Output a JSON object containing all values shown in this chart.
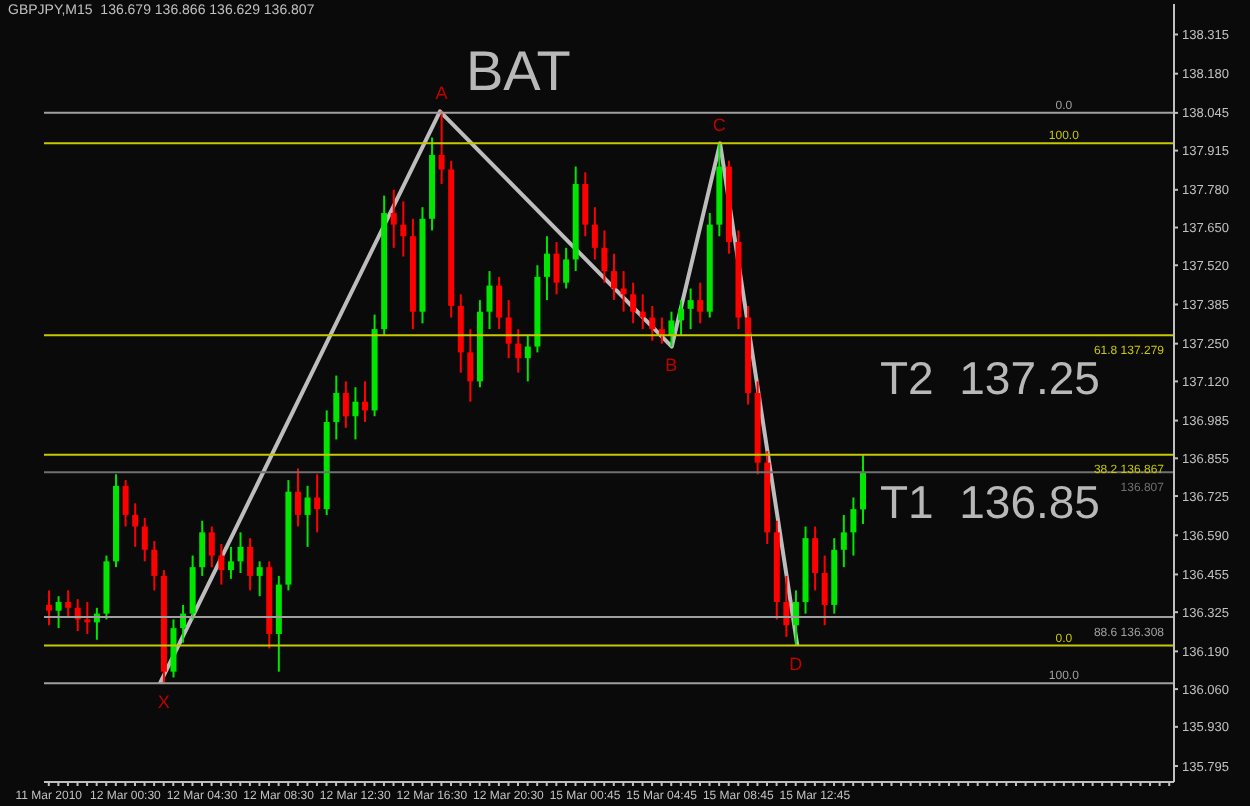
{
  "chart_data": {
    "type": "candlestick",
    "title": "GBPJPY,M15  136.679 136.866 136.629 136.807",
    "categories": [
      "11 Mar 2010",
      null,
      null,
      null,
      null,
      null,
      null,
      null,
      "12 Mar 00:30",
      null,
      null,
      null,
      null,
      null,
      null,
      null,
      "12 Mar 04:30",
      null,
      null,
      null,
      null,
      null,
      null,
      null,
      "12 Mar 08:30",
      null,
      null,
      null,
      null,
      null,
      null,
      null,
      "12 Mar 12:30",
      null,
      null,
      null,
      null,
      null,
      null,
      null,
      "12 Mar 16:30",
      null,
      null,
      null,
      null,
      null,
      null,
      null,
      "12 Mar 20:30",
      null,
      null,
      null,
      null,
      null,
      null,
      null,
      "15 Mar 00:45",
      null,
      null,
      null,
      null,
      null,
      null,
      null,
      "15 Mar 04:45",
      null,
      null,
      null,
      null,
      null,
      null,
      null,
      "15 Mar 08:45",
      null,
      null,
      null,
      null,
      null,
      null,
      null,
      "15 Mar 12:45",
      null,
      null,
      null,
      null,
      null,
      null,
      null,
      null,
      null,
      null,
      null,
      null,
      null,
      null,
      null,
      null,
      null,
      null,
      null,
      null,
      null,
      null,
      null,
      null,
      null,
      null,
      null,
      null,
      null,
      null,
      null,
      null,
      null,
      null,
      null,
      null,
      null
    ],
    "series": [
      {
        "type": "line",
        "color": "#bdbdbd",
        "values": [
          null,
          null,
          null,
          null,
          null,
          null,
          null,
          null,
          null,
          null,
          null,
          null,
          136.08,
          null,
          null,
          null,
          null,
          null,
          null,
          null,
          null,
          null,
          null,
          null,
          null,
          null,
          null,
          null,
          null,
          null,
          null,
          null,
          null,
          null,
          null,
          null,
          null,
          null,
          null,
          null,
          null,
          138.05,
          null,
          null,
          null,
          null,
          null,
          null,
          null,
          null,
          null,
          null,
          null,
          null,
          null,
          null,
          null,
          null,
          null,
          null,
          null,
          null,
          null,
          null,
          null,
          137.24,
          null,
          null,
          null,
          null,
          137.94,
          null,
          null,
          null,
          null,
          null,
          null,
          null,
          136.21,
          null,
          null,
          null,
          null,
          null,
          null,
          null,
          null,
          null,
          null,
          null,
          null,
          null,
          null,
          null,
          null,
          null,
          null,
          null,
          null,
          null,
          null,
          null,
          null,
          null,
          null,
          null,
          null,
          null,
          null,
          null,
          null,
          null,
          null,
          null,
          null,
          null,
          null,
          null
        ]
      },
      {
        "type": "candlestick",
        "colors": [
          "#ff0000",
          "#00e600",
          "#ff0000",
          "#ff0000",
          "#ff0000",
          "#00e600",
          "#00e600",
          "#00e600",
          "#ff0000",
          "#ff0000",
          "#ff0000",
          "#ff0000",
          "#ff0000",
          "#00e600",
          "#00e600",
          "#00e600",
          "#00e600",
          "#ff0000",
          "#ff0000",
          "#00e600",
          "#00e600",
          "#ff0000",
          "#00e600",
          "#ff0000",
          "#00e600",
          "#00e600",
          "#ff0000",
          "#00e600",
          "#ff0000",
          "#00e600",
          "#00e600",
          "#ff0000",
          "#00e600",
          "#ff0000",
          "#00e600",
          "#00e600",
          "#ff0000",
          "#ff0000",
          "#ff0000",
          "#00e600",
          "#00e600",
          "#ff0000",
          "#ff0000",
          "#ff0000",
          "#ff0000",
          "#00e600",
          "#00e600",
          "#ff0000",
          "#ff0000",
          "#ff0000",
          "#00e600",
          "#00e600",
          "#00e600",
          "#ff0000",
          "#00e600",
          "#00e600",
          "#ff0000",
          "#ff0000",
          "#ff0000",
          "#ff0000",
          "#ff0000",
          "#ff0000",
          "#ff0000",
          "#ff0000",
          "#ff0000",
          "#00e600",
          "#00e600",
          "#00e600",
          "#ff0000",
          "#00e600",
          "#00e600",
          "#ff0000",
          "#ff0000",
          "#ff0000",
          "#ff0000",
          "#ff0000",
          "#ff0000",
          "#ff0000",
          "#00e600",
          "#00e600",
          "#ff0000",
          "#ff0000",
          "#00e600",
          "#00e600",
          "#00e600",
          "#00e600",
          null,
          null,
          null,
          null,
          null,
          null,
          null,
          null,
          null,
          null,
          null,
          null,
          null,
          null,
          null,
          null,
          null,
          null,
          null,
          null,
          null,
          null,
          null,
          null,
          null,
          null,
          null,
          null,
          null,
          null,
          null,
          null
        ],
        "ohlc": [
          [
            136.35,
            136.4,
            136.28,
            136.33
          ],
          [
            136.33,
            136.38,
            136.27,
            136.36
          ],
          [
            136.36,
            136.4,
            136.31,
            136.34
          ],
          [
            136.34,
            136.37,
            136.26,
            136.3
          ],
          [
            136.3,
            136.36,
            136.25,
            136.29
          ],
          [
            136.29,
            136.34,
            136.23,
            136.32
          ],
          [
            136.32,
            136.52,
            136.3,
            136.5
          ],
          [
            136.5,
            136.8,
            136.48,
            136.76
          ],
          [
            136.76,
            136.78,
            136.62,
            136.66
          ],
          [
            136.66,
            136.7,
            136.55,
            136.62
          ],
          [
            136.62,
            136.65,
            136.5,
            136.54
          ],
          [
            136.54,
            136.57,
            136.4,
            136.45
          ],
          [
            136.45,
            136.47,
            136.08,
            136.12
          ],
          [
            136.12,
            136.3,
            136.1,
            136.27
          ],
          [
            136.27,
            136.35,
            136.22,
            136.32
          ],
          [
            136.32,
            136.52,
            136.3,
            136.48
          ],
          [
            136.48,
            136.64,
            136.45,
            136.6
          ],
          [
            136.6,
            136.62,
            136.48,
            136.52
          ],
          [
            136.52,
            136.56,
            136.42,
            136.47
          ],
          [
            136.47,
            136.55,
            136.44,
            136.5
          ],
          [
            136.5,
            136.6,
            136.46,
            136.55
          ],
          [
            136.55,
            136.58,
            136.4,
            136.45
          ],
          [
            136.45,
            136.5,
            136.38,
            136.48
          ],
          [
            136.48,
            136.5,
            136.2,
            136.25
          ],
          [
            136.25,
            136.45,
            136.12,
            136.42
          ],
          [
            136.42,
            136.78,
            136.4,
            136.74
          ],
          [
            136.74,
            136.82,
            136.62,
            136.66
          ],
          [
            136.66,
            136.76,
            136.55,
            136.72
          ],
          [
            136.72,
            136.8,
            136.6,
            136.68
          ],
          [
            136.68,
            137.02,
            136.66,
            136.98
          ],
          [
            136.98,
            137.14,
            136.92,
            137.08
          ],
          [
            137.08,
            137.12,
            136.96,
            137.0
          ],
          [
            137.0,
            137.1,
            136.92,
            137.05
          ],
          [
            137.05,
            137.12,
            136.98,
            137.02
          ],
          [
            137.02,
            137.35,
            137.0,
            137.3
          ],
          [
            137.3,
            137.76,
            137.28,
            137.7
          ],
          [
            137.7,
            137.78,
            137.58,
            137.66
          ],
          [
            137.66,
            137.74,
            137.55,
            137.62
          ],
          [
            137.62,
            137.68,
            137.3,
            137.36
          ],
          [
            137.36,
            137.72,
            137.32,
            137.68
          ],
          [
            137.68,
            137.96,
            137.64,
            137.9
          ],
          [
            137.9,
            138.05,
            137.8,
            137.85
          ],
          [
            137.85,
            137.88,
            137.34,
            137.38
          ],
          [
            137.38,
            137.42,
            137.15,
            137.22
          ],
          [
            137.22,
            137.3,
            137.05,
            137.12
          ],
          [
            137.12,
            137.4,
            137.1,
            137.36
          ],
          [
            137.36,
            137.5,
            137.3,
            137.45
          ],
          [
            137.45,
            137.48,
            137.3,
            137.34
          ],
          [
            137.34,
            137.4,
            137.2,
            137.25
          ],
          [
            137.25,
            137.3,
            137.15,
            137.2
          ],
          [
            137.2,
            137.28,
            137.12,
            137.24
          ],
          [
            137.24,
            137.52,
            137.22,
            137.48
          ],
          [
            137.48,
            137.62,
            137.4,
            137.56
          ],
          [
            137.56,
            137.6,
            137.42,
            137.46
          ],
          [
            137.46,
            137.58,
            137.44,
            137.54
          ],
          [
            137.54,
            137.86,
            137.5,
            137.8
          ],
          [
            137.8,
            137.84,
            137.62,
            137.66
          ],
          [
            137.66,
            137.72,
            137.54,
            137.58
          ],
          [
            137.58,
            137.64,
            137.46,
            137.5
          ],
          [
            137.5,
            137.56,
            137.4,
            137.44
          ],
          [
            137.44,
            137.5,
            137.36,
            137.42
          ],
          [
            137.42,
            137.46,
            137.32,
            137.36
          ],
          [
            137.36,
            137.42,
            137.3,
            137.34
          ],
          [
            137.34,
            137.38,
            137.26,
            137.3
          ],
          [
            137.3,
            137.34,
            137.25,
            137.28
          ],
          [
            137.28,
            137.36,
            137.24,
            137.33
          ],
          [
            137.33,
            137.4,
            137.28,
            137.37
          ],
          [
            137.37,
            137.44,
            137.3,
            137.4
          ],
          [
            137.4,
            137.46,
            137.32,
            137.36
          ],
          [
            137.36,
            137.7,
            137.34,
            137.66
          ],
          [
            137.66,
            137.94,
            137.62,
            137.86
          ],
          [
            137.86,
            137.88,
            137.56,
            137.6
          ],
          [
            137.6,
            137.64,
            137.3,
            137.34
          ],
          [
            137.34,
            137.38,
            137.04,
            137.08
          ],
          [
            137.08,
            137.12,
            136.8,
            136.84
          ],
          [
            136.84,
            136.88,
            136.56,
            136.6
          ],
          [
            136.6,
            136.64,
            136.3,
            136.36
          ],
          [
            136.36,
            136.45,
            136.24,
            136.28
          ],
          [
            136.28,
            136.4,
            136.21,
            136.36
          ],
          [
            136.36,
            136.62,
            136.32,
            136.58
          ],
          [
            136.58,
            136.62,
            136.4,
            136.46
          ],
          [
            136.46,
            136.52,
            136.28,
            136.35
          ],
          [
            136.35,
            136.58,
            136.32,
            136.54
          ],
          [
            136.54,
            136.66,
            136.48,
            136.6
          ],
          [
            136.6,
            136.72,
            136.52,
            136.68
          ],
          [
            136.679,
            136.866,
            136.629,
            136.807
          ],
          null,
          null,
          null,
          null,
          null,
          null,
          null,
          null,
          null,
          null,
          null,
          null,
          null,
          null,
          null,
          null,
          null,
          null,
          null,
          null,
          null,
          null,
          null,
          null,
          null,
          null,
          null,
          null,
          null,
          null,
          null,
          null
        ]
      }
    ],
    "ylim": [
      135.74,
      138.42
    ],
    "yticks": [
      {
        "value": 138.315,
        "label": "138.315"
      },
      {
        "value": 138.18,
        "label": "138.180"
      },
      {
        "value": 138.045,
        "label": "138.045"
      },
      {
        "value": 137.915,
        "label": "137.915"
      },
      {
        "value": 137.78,
        "label": "137.780"
      },
      {
        "value": 137.65,
        "label": "137.650"
      },
      {
        "value": 137.52,
        "label": "137.520"
      },
      {
        "value": 137.385,
        "label": "137.385"
      },
      {
        "value": 137.25,
        "label": "137.250"
      },
      {
        "value": 137.12,
        "label": "137.120"
      },
      {
        "value": 136.985,
        "label": "136.985"
      },
      {
        "value": 136.855,
        "label": "136.855"
      },
      {
        "value": 136.725,
        "label": "136.725"
      },
      {
        "value": 136.59,
        "label": "136.590"
      },
      {
        "value": 136.455,
        "label": "136.455"
      },
      {
        "value": 136.325,
        "label": "136.325"
      },
      {
        "value": 136.19,
        "label": "136.190"
      },
      {
        "value": 136.06,
        "label": "136.060"
      },
      {
        "value": 135.93,
        "label": "135.930"
      },
      {
        "value": 135.795,
        "label": "135.795"
      }
    ],
    "ref_lines": [
      {
        "axis": "y",
        "value": 138.045,
        "color": "#a0a0a0"
      },
      {
        "axis": "y",
        "value": 137.94,
        "color": "#c8c800"
      },
      {
        "axis": "y",
        "value": 137.279,
        "label": "61.8   137.279",
        "color": "#c8c800"
      },
      {
        "axis": "y",
        "value": 136.867,
        "label": "38.2   136.867",
        "color": "#c8c800"
      },
      {
        "axis": "y",
        "value": 136.807,
        "label": "136.807",
        "color": "#707070"
      },
      {
        "axis": "y",
        "value": 136.308,
        "label": "88.6   136.308",
        "color": "#a0a0a0"
      },
      {
        "axis": "y",
        "value": 136.21,
        "color": "#c8c800"
      },
      {
        "axis": "y",
        "value": 136.08,
        "color": "#a0a0a0"
      }
    ],
    "annotations": [
      "BAT",
      "T2  137.25",
      "T1  136.85",
      {
        "text": "X",
        "y": 136.08
      },
      {
        "text": "A",
        "y": 138.05
      },
      {
        "text": "B",
        "y": 137.24
      },
      {
        "text": "C",
        "y": 137.94
      },
      {
        "text": "D",
        "y": 136.21
      },
      {
        "text": "0.0",
        "y": 138.045
      },
      {
        "text": "100.0",
        "y": 137.94
      },
      {
        "text": "0.0",
        "y": 136.21
      },
      {
        "text": "100.0",
        "y": 136.08
      }
    ],
    "grid": false
  }
}
